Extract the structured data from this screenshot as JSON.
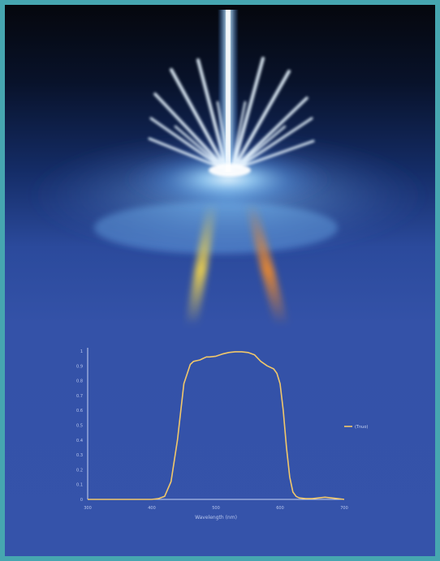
{
  "illustration": {
    "description_icon": "laser-beam-icon",
    "colors": {
      "beam": "#bfe6ff",
      "glow": "#d8f3ff",
      "streak_yellow": "#f7d84a",
      "streak_orange": "#f08a2a",
      "border": "#46a6b0"
    }
  },
  "chart_data": {
    "type": "line",
    "title": "",
    "xlabel": "Wavelength (nm)",
    "ylabel": "",
    "xlim": [
      300,
      700
    ],
    "ylim": [
      0,
      1
    ],
    "x_ticks": [
      "300",
      "400",
      "500",
      "600",
      "700"
    ],
    "y_ticks": [
      "0",
      "0.1",
      "0.2",
      "0.3",
      "0.4",
      "0.5",
      "0.6",
      "0.7",
      "0.8",
      "0.9",
      "1"
    ],
    "grid": false,
    "legend_position": "right",
    "series": [
      {
        "name": "(Tnuo)",
        "color": "#f2c86a",
        "x": [
          300,
          350,
          400,
          410,
          420,
          430,
          440,
          450,
          460,
          465,
          470,
          475,
          480,
          485,
          490,
          500,
          510,
          520,
          530,
          540,
          550,
          560,
          570,
          580,
          590,
          595,
          600,
          605,
          610,
          615,
          620,
          625,
          630,
          640,
          650,
          660,
          670,
          680,
          690,
          700
        ],
        "y": [
          0,
          0,
          0,
          0.005,
          0.02,
          0.12,
          0.4,
          0.78,
          0.91,
          0.93,
          0.935,
          0.94,
          0.95,
          0.96,
          0.96,
          0.965,
          0.98,
          0.99,
          0.995,
          0.995,
          0.99,
          0.975,
          0.93,
          0.9,
          0.88,
          0.85,
          0.78,
          0.6,
          0.35,
          0.15,
          0.05,
          0.02,
          0.01,
          0.005,
          0.005,
          0.01,
          0.015,
          0.01,
          0.005,
          0
        ]
      }
    ]
  }
}
